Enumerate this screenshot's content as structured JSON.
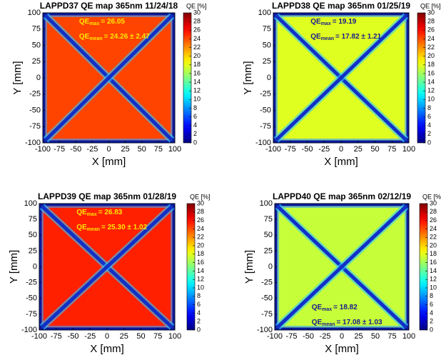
{
  "chart_data": [
    {
      "type": "heatmap",
      "title": "LAPPD37 QE map 365nm 11/24/18",
      "xlabel": "X [mm]",
      "ylabel": "Y [mm]",
      "colorbar_label": "QE [%]",
      "xlim": [
        -100,
        100
      ],
      "ylim": [
        -100,
        100
      ],
      "xticks": [
        -100,
        -75,
        -50,
        -25,
        0,
        25,
        50,
        75,
        100
      ],
      "yticks": [
        -100,
        -75,
        -50,
        -25,
        0,
        25,
        50,
        75,
        100
      ],
      "clim": [
        0,
        30
      ],
      "cticks": [
        0,
        2,
        4,
        6,
        8,
        10,
        12,
        14,
        16,
        18,
        20,
        22,
        24,
        26,
        28,
        30
      ],
      "annotation_corner": "top",
      "annotation_color": "#ffe600",
      "annotations": [
        {
          "label": "QE",
          "sub": "max",
          "value": 26.05,
          "value_label": "= 26.05"
        },
        {
          "label": "QE",
          "sub": "mean",
          "value": 24.26,
          "error": 2.47,
          "value_label": "= 24.26 ± 2.47"
        }
      ]
    },
    {
      "type": "heatmap",
      "title": "LAPPD38 QE map 365nm 01/25/19",
      "xlabel": "X [mm]",
      "ylabel": "Y [mm]",
      "colorbar_label": "QE [%]",
      "xlim": [
        -100,
        100
      ],
      "ylim": [
        -100,
        100
      ],
      "xticks": [
        -100,
        -75,
        -50,
        -25,
        0,
        25,
        50,
        75,
        100
      ],
      "yticks": [
        -100,
        -75,
        -50,
        -25,
        0,
        25,
        50,
        75,
        100
      ],
      "clim": [
        0,
        30
      ],
      "cticks": [
        0,
        2,
        4,
        6,
        8,
        10,
        12,
        14,
        16,
        18,
        20,
        22,
        24,
        26,
        28,
        30
      ],
      "annotation_corner": "top",
      "annotation_color": "#1a1a8c",
      "annotations": [
        {
          "label": "QE",
          "sub": "max",
          "value": 19.19,
          "value_label": "= 19.19"
        },
        {
          "label": "QE",
          "sub": "mean",
          "value": 17.82,
          "error": 1.21,
          "value_label": "= 17.82 ± 1.21"
        }
      ]
    },
    {
      "type": "heatmap",
      "title": "LAPPD39 QE map 365nm 01/28/19",
      "xlabel": "X [mm]",
      "ylabel": "Y [mm]",
      "colorbar_label": "QE [%]",
      "xlim": [
        -100,
        100
      ],
      "ylim": [
        -100,
        100
      ],
      "xticks": [
        -100,
        -75,
        -50,
        -25,
        0,
        25,
        50,
        75,
        100
      ],
      "yticks": [
        -100,
        -75,
        -50,
        -25,
        0,
        25,
        50,
        75,
        100
      ],
      "clim": [
        0,
        30
      ],
      "cticks": [
        0,
        2,
        4,
        6,
        8,
        10,
        12,
        14,
        16,
        18,
        20,
        22,
        24,
        26,
        28,
        30
      ],
      "annotation_corner": "top",
      "annotation_color": "#ffe600",
      "annotations": [
        {
          "label": "QE",
          "sub": "max",
          "value": 26.83,
          "value_label": "= 26.83"
        },
        {
          "label": "QE",
          "sub": "mean",
          "value": 25.3,
          "error": 1.02,
          "value_label": "= 25.30 ± 1.02"
        }
      ]
    },
    {
      "type": "heatmap",
      "title": "LAPPD40 QE map 365nm 02/12/19",
      "xlabel": "X [mm]",
      "ylabel": "Y [mm]",
      "colorbar_label": "QE [%]",
      "xlim": [
        -100,
        100
      ],
      "ylim": [
        -100,
        100
      ],
      "xticks": [
        -100,
        -75,
        -50,
        -25,
        0,
        25,
        50,
        75,
        100
      ],
      "yticks": [
        -100,
        -75,
        -50,
        -25,
        0,
        25,
        50,
        75,
        100
      ],
      "clim": [
        0,
        30
      ],
      "cticks": [
        0,
        2,
        4,
        6,
        8,
        10,
        12,
        14,
        16,
        18,
        20,
        22,
        24,
        26,
        28,
        30
      ],
      "annotation_corner": "bottom",
      "annotation_color": "#1a1a8c",
      "annotations": [
        {
          "label": "QE",
          "sub": "max",
          "value": 18.82,
          "value_label": "= 18.82"
        },
        {
          "label": "QE",
          "sub": "mean",
          "value": 17.08,
          "error": 1.03,
          "value_label": "= 17.08 ± 1.03"
        }
      ]
    }
  ]
}
